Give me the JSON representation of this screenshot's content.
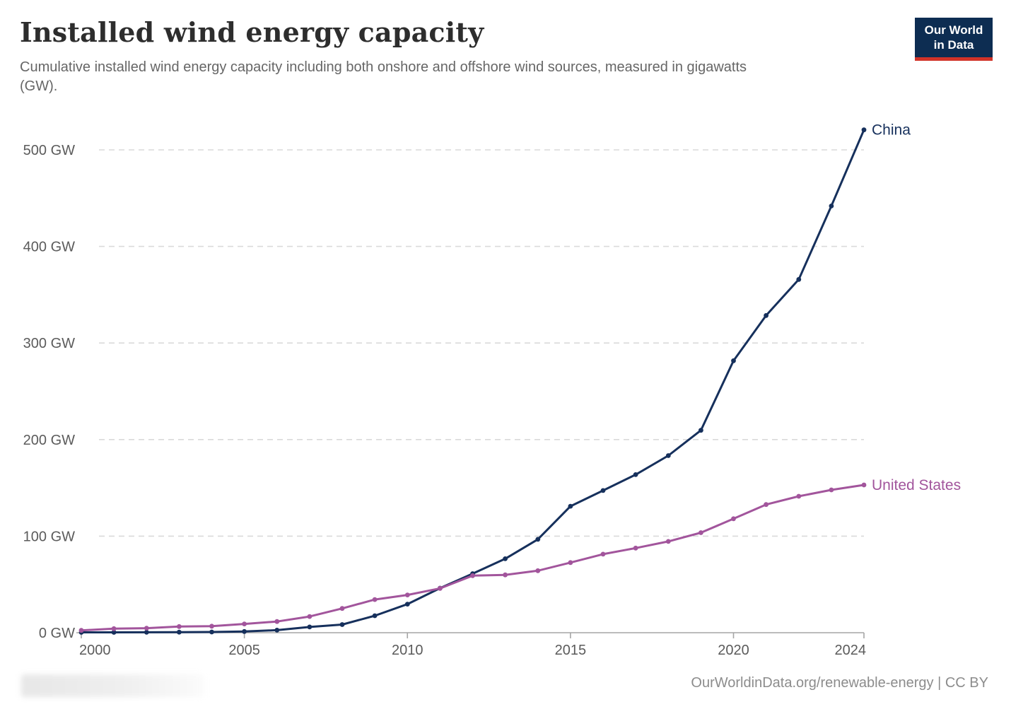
{
  "header": {
    "title": "Installed wind energy capacity",
    "subtitle": "Cumulative installed wind energy capacity including both onshore and offshore wind sources, measured in gigawatts (GW).",
    "logo": {
      "line1": "Our World",
      "line2": "in Data",
      "bg_color": "#0d2d52",
      "accent_color": "#d13328"
    }
  },
  "footer": {
    "source_text": "OurWorldinData.org/renewable-energy | CC BY"
  },
  "chart_data": {
    "type": "line",
    "title": "Installed wind energy capacity",
    "xlabel": "",
    "ylabel": "",
    "unit": "GW",
    "grid": "horizontal-dashed",
    "legend_position": "line-end-labels",
    "xlim": [
      2000,
      2024
    ],
    "ylim": [
      0,
      500
    ],
    "xticks": [
      2000,
      2005,
      2010,
      2015,
      2020,
      2024
    ],
    "yticks": [
      0,
      100,
      200,
      300,
      400,
      500
    ],
    "ytick_format": "{value} GW",
    "x": [
      2000,
      2001,
      2002,
      2003,
      2004,
      2005,
      2006,
      2007,
      2008,
      2009,
      2010,
      2011,
      2012,
      2013,
      2014,
      2015,
      2016,
      2017,
      2018,
      2019,
      2020,
      2021,
      2022,
      2023,
      2024
    ],
    "series": [
      {
        "name": "China",
        "color": "#16305c",
        "values": [
          0.34,
          0.4,
          0.47,
          0.57,
          0.76,
          1.26,
          2.6,
          5.9,
          8.4,
          17.6,
          29.6,
          46.1,
          61.1,
          76.6,
          96.7,
          131.0,
          147.2,
          163.7,
          183.4,
          209.6,
          281.6,
          328.5,
          365.8,
          441.9,
          520.7
        ]
      },
      {
        "name": "United States",
        "color": "#a2559c",
        "values": [
          2.4,
          4.2,
          4.7,
          6.4,
          6.7,
          9.1,
          11.6,
          16.8,
          25.1,
          34.3,
          39.1,
          45.9,
          59.1,
          59.9,
          64.2,
          72.6,
          81.3,
          87.6,
          94.5,
          103.6,
          118.0,
          132.7,
          141.3,
          147.9,
          153.0
        ]
      }
    ]
  }
}
